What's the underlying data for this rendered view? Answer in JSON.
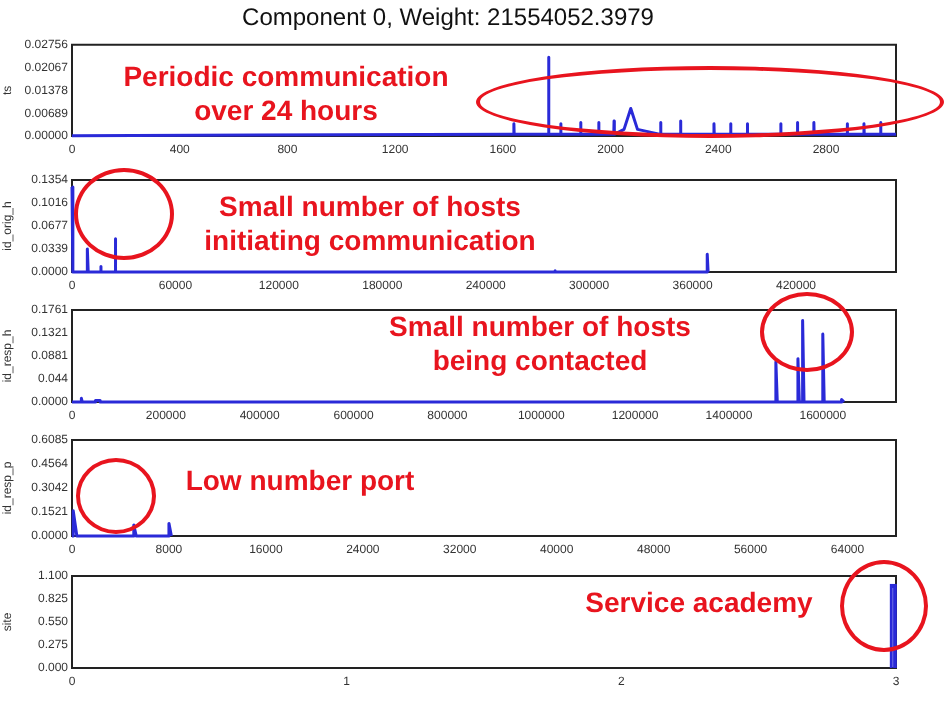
{
  "chart_data": [
    {
      "type": "line",
      "title": "Component 0, Weight: 21554052.3979",
      "ylabel": "ts",
      "color": "#2a2ad8",
      "x": [
        0,
        1640,
        1641,
        1642,
        1769,
        1770,
        1771,
        1814,
        1815,
        1816,
        1888,
        1889,
        1890,
        1955,
        1956,
        1957,
        2012,
        2013,
        2014,
        2050,
        2075,
        2100,
        2185,
        2186,
        2187,
        2259,
        2260,
        2261,
        2383,
        2384,
        2385,
        2445,
        2446,
        2447,
        2507,
        2508,
        2509,
        2631,
        2632,
        2633,
        2693,
        2694,
        2695,
        2754,
        2755,
        2756,
        2878,
        2879,
        2880,
        2940,
        2941,
        2942,
        3002,
        3003,
        3004,
        3060
      ],
      "values": [
        0.0001,
        0.0005,
        0.0037,
        0.0005,
        0.0005,
        0.0238,
        0.0005,
        0.0005,
        0.0037,
        0.0005,
        0.0005,
        0.0041,
        0.0005,
        0.0005,
        0.0041,
        0.0005,
        0.0005,
        0.0045,
        0.0005,
        0.002,
        0.0083,
        0.002,
        0.0005,
        0.0041,
        0.0005,
        0.0005,
        0.0045,
        0.0005,
        0.0005,
        0.0037,
        0.0005,
        0.0005,
        0.0037,
        0.0005,
        0.0005,
        0.0037,
        0.0005,
        0.0005,
        0.0037,
        0.0005,
        0.0005,
        0.0041,
        0.0005,
        0.0005,
        0.0041,
        0.0005,
        0.0005,
        0.0037,
        0.0005,
        0.0005,
        0.0037,
        0.0005,
        0.0005,
        0.0041,
        0.0005,
        0.0005
      ],
      "xlim": [
        0,
        3060
      ],
      "xticks": [
        0,
        400,
        800,
        1200,
        1600,
        2000,
        2400,
        2800
      ],
      "ylim": [
        0,
        0.02756
      ],
      "yticks": [
        {
          "value": 0,
          "label": "0.00000"
        },
        0.00689,
        0.01378,
        0.02067,
        0.02756
      ],
      "annotations": [
        "Periodic communication over 24 hours"
      ]
    },
    {
      "type": "line",
      "ylabel": "id_orig_h",
      "color": "#2a2ad8",
      "x": [
        0,
        500,
        8900,
        8900,
        9400,
        16600,
        16600,
        17000,
        25000,
        25000,
        25500,
        280000,
        280000,
        280500,
        368500,
        368500,
        369000
      ],
      "values": [
        0.125,
        0,
        0,
        0.034,
        0,
        0,
        0.008,
        0,
        0,
        0.049,
        0,
        0,
        0.002,
        0,
        0,
        0.026,
        0
      ],
      "xlim": [
        0,
        478000
      ],
      "xticks": [
        0,
        60000,
        120000,
        180000,
        240000,
        300000,
        360000,
        420000
      ],
      "ylim": [
        0,
        0.1354
      ],
      "yticks": [
        {
          "value": 0,
          "label": "0.0000"
        },
        0.0339,
        0.0677,
        0.1016,
        0.1354
      ],
      "annotations": [
        "Small number of hosts initiating communication"
      ]
    },
    {
      "type": "line",
      "ylabel": "id_resp_h",
      "color": "#2a2ad8",
      "x": [
        0,
        20000,
        20000,
        22000,
        50000,
        50000,
        60000,
        60000,
        1480000,
        1500000,
        1500000,
        1503000,
        1547000,
        1547000,
        1550000,
        1557000,
        1557000,
        1560000,
        1600000,
        1600000,
        1603000,
        1640000,
        1640000,
        1645000
      ],
      "values": [
        0,
        0,
        0.007,
        0,
        0,
        0.003,
        0.003,
        0,
        0,
        0,
        0.077,
        0,
        0,
        0.083,
        0,
        0,
        0.156,
        0,
        0,
        0.13,
        0,
        0,
        0.005,
        0
      ],
      "xlim": [
        0,
        1756000
      ],
      "xticks": [
        0,
        200000,
        400000,
        600000,
        800000,
        1000000,
        1200000,
        1400000,
        1600000
      ],
      "ylim": [
        0,
        0.1761
      ],
      "yticks": [
        {
          "value": 0,
          "label": "0.0000"
        },
        0.044,
        0.0881,
        0.1321,
        0.1761
      ],
      "annotations": [
        "Small number of hosts being contacted"
      ]
    },
    {
      "type": "line",
      "ylabel": "id_resp_p",
      "color": "#2a2ad8",
      "x": [
        0,
        100,
        100,
        400,
        5100,
        5100,
        5300,
        8000,
        8000,
        8200
      ],
      "values": [
        0,
        0,
        0.16,
        0,
        0,
        0.07,
        0,
        0,
        0.08,
        0
      ],
      "xlim": [
        0,
        68000
      ],
      "xticks": [
        0,
        8000,
        16000,
        24000,
        32000,
        40000,
        48000,
        56000,
        64000
      ],
      "ylim": [
        0,
        0.6085
      ],
      "yticks": [
        {
          "value": 0,
          "label": "0.0000"
        },
        0.1521,
        0.3042,
        0.4564,
        0.6085
      ],
      "annotations": [
        "Low number port"
      ]
    },
    {
      "type": "bar",
      "ylabel": "site",
      "color": "#2a2ad8",
      "x": [
        2.99
      ],
      "values": [
        1.0
      ],
      "xlim": [
        0,
        3
      ],
      "xticks": [
        0,
        1,
        2,
        3
      ],
      "ylim": [
        0,
        1.1
      ],
      "yticks": [
        {
          "value": 0,
          "label": "0.000"
        },
        {
          "value": 0.275,
          "label": "0.275"
        },
        {
          "value": 0.55,
          "label": "0.550"
        },
        {
          "value": 0.825,
          "label": "0.825"
        },
        {
          "value": 1.1,
          "label": "1.100"
        }
      ],
      "annotations": [
        "Service academy"
      ]
    }
  ]
}
